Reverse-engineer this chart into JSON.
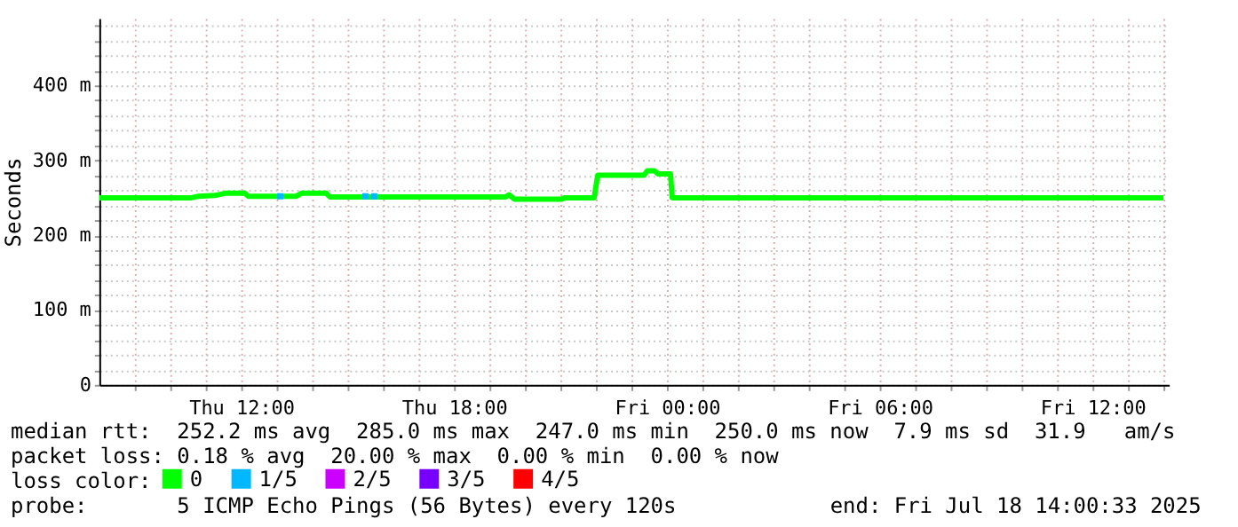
{
  "chart_data": {
    "type": "line",
    "ylabel": "Seconds",
    "x": [
      "2025-07-17T08:00",
      "2025-07-17T10:36",
      "2025-07-17T10:48",
      "2025-07-17T11:15",
      "2025-07-17T11:33",
      "2025-07-17T12:06",
      "2025-07-17T12:12",
      "2025-07-17T13:33",
      "2025-07-17T13:42",
      "2025-07-17T14:24",
      "2025-07-17T14:30",
      "2025-07-17T19:27",
      "2025-07-17T19:33",
      "2025-07-17T19:42",
      "2025-07-17T21:03",
      "2025-07-17T21:06",
      "2025-07-17T21:57",
      "2025-07-17T22:03",
      "2025-07-17T23:21",
      "2025-07-17T23:27",
      "2025-07-17T23:39",
      "2025-07-17T23:45",
      "2025-07-18T00:06",
      "2025-07-18T00:09",
      "2025-07-18T14:00"
    ],
    "series": [
      {
        "name": "0",
        "color": "#00ff00",
        "values": [
          250,
          250,
          252,
          253,
          256,
          256,
          252,
          252,
          256,
          256,
          251,
          251,
          254,
          248,
          248,
          250,
          250,
          280,
          280,
          286,
          286,
          282,
          282,
          250,
          250
        ]
      },
      {
        "name": "1/5",
        "color": "#00b8ff",
        "type": "scatter",
        "marker": "square",
        "x": [
          "2025-07-17T13:06",
          "2025-07-17T15:30",
          "2025-07-17T15:45"
        ],
        "values": [
          252,
          252,
          252
        ]
      },
      {
        "name": "2/5",
        "color": "#cc00ff",
        "values": [
          null,
          null,
          null,
          null,
          null,
          null,
          null,
          null,
          null,
          null,
          null,
          null,
          null,
          null,
          null,
          null,
          null,
          null,
          null,
          null,
          null,
          null,
          null,
          null,
          null
        ]
      },
      {
        "name": "3/5",
        "color": "#7700ff",
        "values": [
          null,
          null,
          null,
          null,
          null,
          null,
          null,
          null,
          null,
          null,
          null,
          null,
          null,
          null,
          null,
          null,
          null,
          null,
          null,
          null,
          null,
          null,
          null,
          null,
          null
        ]
      },
      {
        "name": "4/5",
        "color": "#ff0000",
        "values": [
          null,
          null,
          null,
          null,
          null,
          null,
          null,
          null,
          null,
          null,
          null,
          null,
          null,
          null,
          null,
          null,
          null,
          null,
          null,
          null,
          null,
          null,
          null,
          null,
          null
        ]
      }
    ],
    "legend": "bottom",
    "legend_title": "loss color:",
    "grid": true,
    "xlim": [
      "2025-07-17T08:00",
      "2025-07-18T14:09"
    ],
    "xticks": [
      {
        "value": "2025-07-17T09:00",
        "label": null
      },
      {
        "value": "2025-07-17T10:00",
        "label": null
      },
      {
        "value": "2025-07-17T11:00",
        "label": null
      },
      {
        "value": "2025-07-17T12:00",
        "label": "Thu 12:00"
      },
      {
        "value": "2025-07-17T13:00",
        "label": null
      },
      {
        "value": "2025-07-17T14:00",
        "label": null
      },
      {
        "value": "2025-07-17T15:00",
        "label": null
      },
      {
        "value": "2025-07-17T16:00",
        "label": null
      },
      {
        "value": "2025-07-17T17:00",
        "label": null
      },
      {
        "value": "2025-07-17T18:00",
        "label": "Thu 18:00"
      },
      {
        "value": "2025-07-17T19:00",
        "label": null
      },
      {
        "value": "2025-07-17T20:00",
        "label": null
      },
      {
        "value": "2025-07-17T21:00",
        "label": null
      },
      {
        "value": "2025-07-17T22:00",
        "label": null
      },
      {
        "value": "2025-07-17T23:00",
        "label": null
      },
      {
        "value": "2025-07-18T00:00",
        "label": "Fri 00:00"
      },
      {
        "value": "2025-07-18T01:00",
        "label": null
      },
      {
        "value": "2025-07-18T02:00",
        "label": null
      },
      {
        "value": "2025-07-18T03:00",
        "label": null
      },
      {
        "value": "2025-07-18T04:00",
        "label": null
      },
      {
        "value": "2025-07-18T05:00",
        "label": null
      },
      {
        "value": "2025-07-18T06:00",
        "label": "Fri 06:00"
      },
      {
        "value": "2025-07-18T07:00",
        "label": null
      },
      {
        "value": "2025-07-18T08:00",
        "label": null
      },
      {
        "value": "2025-07-18T09:00",
        "label": null
      },
      {
        "value": "2025-07-18T10:00",
        "label": null
      },
      {
        "value": "2025-07-18T11:00",
        "label": null
      },
      {
        "value": "2025-07-18T12:00",
        "label": "Fri 12:00"
      },
      {
        "value": "2025-07-18T13:00",
        "label": null
      },
      {
        "value": "2025-07-18T14:00",
        "label": null
      }
    ],
    "ylim": [
      0,
      490
    ],
    "yticks": [
      0,
      {
        "value": 20,
        "label": null
      },
      {
        "value": 40,
        "label": null
      },
      {
        "value": 60,
        "label": null
      },
      {
        "value": 80,
        "label": null
      },
      {
        "value": 100,
        "label": "100 m"
      },
      {
        "value": 120,
        "label": null
      },
      {
        "value": 140,
        "label": null
      },
      {
        "value": 160,
        "label": null
      },
      {
        "value": 180,
        "label": null
      },
      {
        "value": 200,
        "label": "200 m"
      },
      {
        "value": 220,
        "label": null
      },
      {
        "value": 240,
        "label": null
      },
      {
        "value": 260,
        "label": null
      },
      {
        "value": 280,
        "label": null
      },
      {
        "value": 300,
        "label": "300 m"
      },
      {
        "value": 320,
        "label": null
      },
      {
        "value": 340,
        "label": null
      },
      {
        "value": 360,
        "label": null
      },
      {
        "value": 380,
        "label": null
      },
      {
        "value": 400,
        "label": "400 m"
      },
      {
        "value": 420,
        "label": null
      },
      {
        "value": 440,
        "label": null
      },
      {
        "value": 460,
        "label": null
      },
      {
        "value": 480,
        "label": null
      }
    ],
    "annotations": [
      "median rtt:  252.2 ms avg  285.0 ms max  247.0 ms min  250.0 ms now  7.9 ms sd  31.9   am/s",
      "packet loss: 0.18 % avg  20.00 % max  0.00 % min  0.00 % now",
      "probe:       5 ICMP Echo Pings (56 Bytes) every 120s",
      "end: Fri Jul 18 14:00:33 2025"
    ]
  }
}
